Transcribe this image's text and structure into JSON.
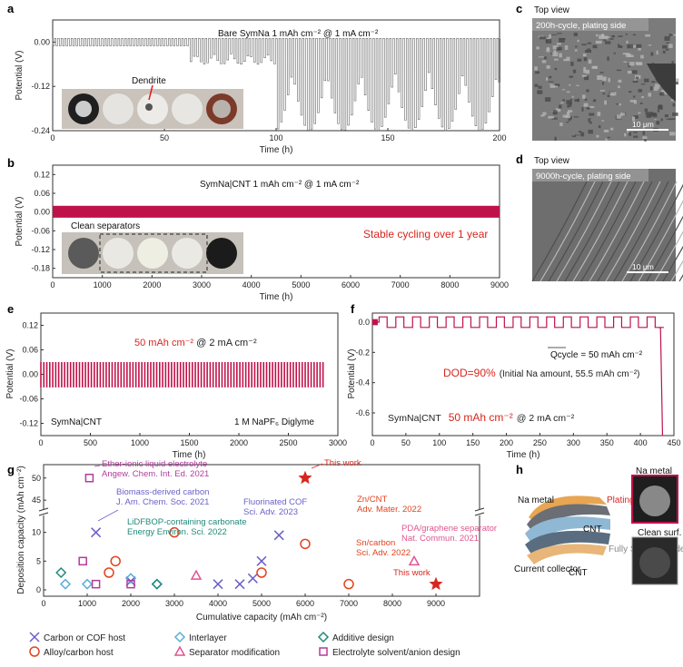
{
  "panels": {
    "a": {
      "label": "a",
      "title": "Bare SymNa    1 mAh cm⁻² @ 1 mA cm⁻²",
      "photo_label": "Dendrite",
      "xlabel": "Time (h)",
      "ylabel": "Potential (V)",
      "xticks": [
        "0",
        "50",
        "100",
        "150",
        "200"
      ],
      "yticks": [
        "0.00",
        "-0.12",
        "-0.24"
      ]
    },
    "b": {
      "label": "b",
      "title": "SymNa|CNT   1 mAh cm⁻² @ 1 mA cm⁻²",
      "photo_label": "Clean separators",
      "note": "Stable cycling over 1 year",
      "xlabel": "Time (h)",
      "ylabel": "Potential (V)",
      "xticks": [
        "0",
        "1000",
        "2000",
        "3000",
        "4000",
        "5000",
        "6000",
        "7000",
        "8000",
        "9000"
      ],
      "yticks": [
        "0.12",
        "0.06",
        "0.00",
        "-0.06",
        "-0.12",
        "-0.18"
      ]
    },
    "c": {
      "label": "c",
      "title": "Top view",
      "caption": "200h-cycle, plating side",
      "scale": "10 μm"
    },
    "d": {
      "label": "d",
      "title": "Top view",
      "caption": "9000h-cycle, plating side",
      "scale": "10 μm"
    },
    "e": {
      "label": "e",
      "title_red": "50 mAh cm⁻²",
      "title_rest": " @ 2 mA cm⁻²",
      "left_note": "SymNa|CNT",
      "right_note": "1 M NaPF₆ Diglyme",
      "xlabel": "Time (h)",
      "ylabel": "Potential (V)",
      "xticks": [
        "0",
        "500",
        "1000",
        "1500",
        "2000",
        "2500",
        "3000"
      ],
      "yticks": [
        "0.12",
        "0.06",
        "0.00",
        "-0.06",
        "-0.12"
      ]
    },
    "f": {
      "label": "f",
      "qcycle": "Qcycle = 50 mAh cm⁻²",
      "dod_red": "DOD=90%",
      "dod_rest": "(Initial Na amount, 55.5 mAh cm⁻²)",
      "bottom_note": "SymNa|CNT",
      "bottom_red": "50 mAh cm⁻²",
      "bottom_rest": "@ 2 mA cm⁻²",
      "xlabel": "Time (h)",
      "ylabel": "Potential (V)",
      "xticks": [
        "0",
        "50",
        "100",
        "150",
        "200",
        "250",
        "300",
        "350",
        "400",
        "450"
      ],
      "yticks": [
        "0.0",
        "-0.2",
        "-0.4",
        "-0.6"
      ]
    },
    "g": {
      "label": "g",
      "xlabel": "Cumulative capacity (mAh cm⁻²)",
      "ylabel": "Deposition capacity (mAh cm⁻²)",
      "xticks": [
        "0",
        "1000",
        "2000",
        "3000",
        "4000",
        "5000",
        "6000",
        "7000",
        "8000",
        "9000"
      ],
      "yticks_low": [
        "0",
        "5",
        "10"
      ],
      "yticks_high": [
        "45",
        "50"
      ]
    },
    "h": {
      "label": "h",
      "na_metal": "Na metal",
      "plating": "Plating side",
      "cnt_top": "CNT",
      "cnt_bottom": "CNT",
      "current_collector": "Current collector",
      "stripping": "Fully Stripping side",
      "photo_top": "Na metal",
      "photo_bottom": "Clean surf."
    }
  },
  "legend": [
    {
      "name": "Carbon or COF host",
      "marker": "x",
      "color": "#6a5fc8"
    },
    {
      "name": "Interlayer",
      "marker": "diamond",
      "color": "#5aaed6"
    },
    {
      "name": "Additive design",
      "marker": "diamond",
      "color": "#1f8a7a"
    },
    {
      "name": "Alloy/carbon host",
      "marker": "circle",
      "color": "#e2431e"
    },
    {
      "name": "Separator modification",
      "marker": "triangle",
      "color": "#e05590"
    },
    {
      "name": "Electrolyte solvent/anion design",
      "marker": "square",
      "color": "#b23b9e"
    }
  ],
  "annotations_g": [
    {
      "lines": [
        "Ether-ionic liquid electrolyte",
        "Angew. Chem. Int. Ed. 2021"
      ],
      "color": "#b23b9e"
    },
    {
      "lines": [
        "Biomass-derived carbon",
        "J. Am. Chem. Soc. 2021"
      ],
      "color": "#6a5fc8"
    },
    {
      "lines": [
        "LiDFBOP-containing carbonate",
        "Energy Environ. Sci. 2022"
      ],
      "color": "#1f8a7a"
    },
    {
      "lines": [
        "Fluorinated COF",
        "Sci. Adv. 2023"
      ],
      "color": "#6a5fc8"
    },
    {
      "lines": [
        "Zn/CNT",
        "Adv. Mater. 2022"
      ],
      "color": "#e2431e"
    },
    {
      "lines": [
        "Sn/carbon",
        "Sci. Adv. 2022"
      ],
      "color": "#e2431e"
    },
    {
      "lines": [
        "PDA/graphene separator",
        "Nat. Commun. 2021"
      ],
      "color": "#e05590"
    },
    {
      "lines": [
        "This work"
      ],
      "color": "#d7261e"
    },
    {
      "lines": [
        "This work"
      ],
      "color": "#d7261e"
    }
  ],
  "chart_data": [
    {
      "type": "line",
      "panel": "a",
      "xlabel": "Time (h)",
      "ylabel": "Potential (V)",
      "xlim": [
        0,
        200
      ],
      "ylim": [
        -0.24,
        0.06
      ],
      "series": [
        {
          "values_note": "symmetric cell voltage, ±0.01 V before ~80 h, spikes to ~-0.24 V after 100 h"
        }
      ]
    },
    {
      "type": "area",
      "panel": "b",
      "xlabel": "Time (h)",
      "ylabel": "Potential (V)",
      "xlim": [
        0,
        9000
      ],
      "ylim": [
        -0.18,
        0.12
      ],
      "band": [
        -0.018,
        0.02
      ]
    },
    {
      "type": "area",
      "panel": "e",
      "xlabel": "Time (h)",
      "ylabel": "Potential (V)",
      "xlim": [
        0,
        3000
      ],
      "ylim": [
        -0.15,
        0.15
      ],
      "band": [
        -0.03,
        0.03
      ],
      "end": 2880
    },
    {
      "type": "line",
      "panel": "f",
      "xlabel": "Time (h)",
      "ylabel": "Potential (V)",
      "xlim": [
        0,
        450
      ],
      "ylim": [
        -0.75,
        0.06
      ],
      "cycle_h": 25,
      "end": 435
    },
    {
      "type": "scatter",
      "panel": "g",
      "xlabel": "Cumulative capacity (mAh cm⁻²)",
      "ylabel": "Deposition capacity (mAh cm⁻²)",
      "series": [
        {
          "name": "Carbon or COF host",
          "points": [
            [
              1200,
              10
            ],
            [
              2000,
              1.5
            ],
            [
              4000,
              1
            ],
            [
              4500,
              1
            ],
            [
              4800,
              2
            ],
            [
              5000,
              5
            ],
            [
              5400,
              9.5
            ]
          ]
        },
        {
          "name": "Interlayer",
          "points": [
            [
              500,
              1
            ],
            [
              1000,
              1
            ],
            [
              2000,
              2
            ],
            [
              2600,
              1
            ]
          ]
        },
        {
          "name": "Additive design",
          "points": [
            [
              400,
              3
            ],
            [
              2600,
              1
            ]
          ]
        },
        {
          "name": "Alloy/carbon host",
          "points": [
            [
              1500,
              3
            ],
            [
              1650,
              5
            ],
            [
              3000,
              10
            ],
            [
              5000,
              3
            ],
            [
              6000,
              8
            ],
            [
              7000,
              1
            ]
          ]
        },
        {
          "name": "Separator modification",
          "points": [
            [
              3500,
              2.5
            ],
            [
              8500,
              5
            ]
          ]
        },
        {
          "name": "Electrolyte solvent/anion design",
          "points": [
            [
              900,
              5
            ],
            [
              1050,
              50
            ],
            [
              1200,
              1
            ],
            [
              2000,
              1
            ]
          ]
        },
        {
          "name": "This work",
          "points": [
            [
              6000,
              50
            ],
            [
              9000,
              1
            ]
          ]
        }
      ]
    }
  ]
}
